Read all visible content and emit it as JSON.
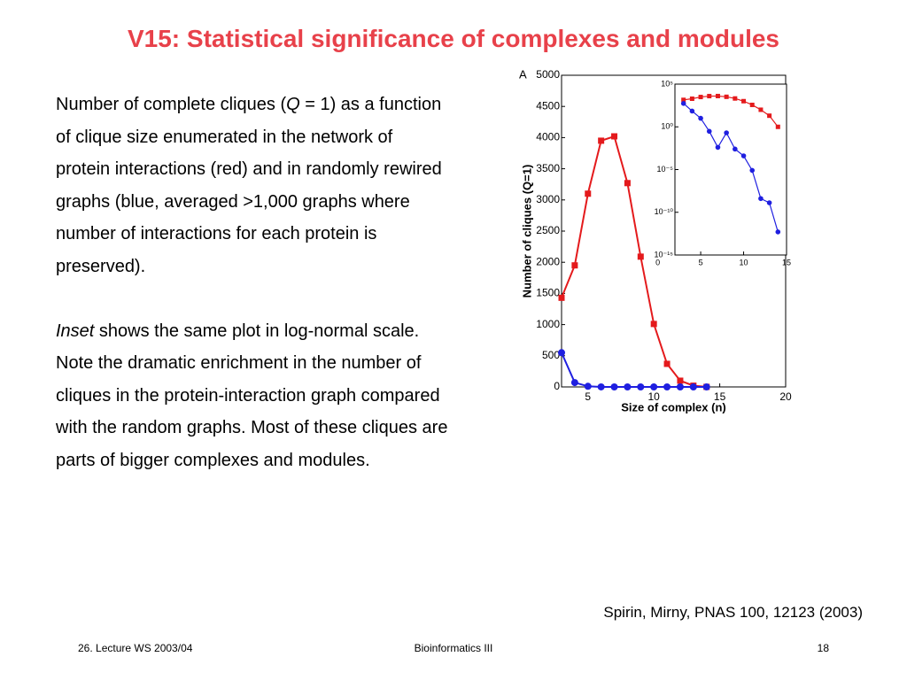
{
  "title": "V15: Statistical significance of complexes and modules",
  "paragraphs": [
    [
      {
        "text": "Number of complete cliques ("
      },
      {
        "text": "Q",
        "italic": true
      },
      {
        "text": " = 1) as a function of clique size enumerated in the network of protein interactions (red) and in randomly rewired graphs (blue, averaged >1,000 graphs where number of interactions for each protein is preserved)."
      }
    ],
    [
      {
        "text": "Inset",
        "italic": true
      },
      {
        "text": " shows the same plot in log-normal scale. Note the dramatic enrichment in the number of cliques in the protein-interaction graph compared with the random graphs. Most of these cliques are parts of bigger complexes and modules."
      }
    ]
  ],
  "chart_data": [
    {
      "type": "line",
      "panel_label": "A",
      "xlabel": "Size of complex (n)",
      "ylabel": "Number of cliques (Q=1)",
      "x": [
        3,
        4,
        5,
        6,
        7,
        8,
        9,
        10,
        11,
        12,
        13,
        14
      ],
      "series": [
        {
          "color": "#e41a1c",
          "marker": "square",
          "values": [
            1430,
            1950,
            3100,
            3950,
            4020,
            3270,
            2090,
            1010,
            370,
            100,
            20,
            1
          ]
        },
        {
          "color": "#1f1fe0",
          "marker": "circle",
          "values": [
            550,
            70,
            10,
            0.3,
            0.004,
            0.2,
            0.0025,
            0.0004,
            8e-06,
            4e-09,
            1.3e-09,
            5e-13
          ]
        }
      ],
      "xlim": [
        3,
        20
      ],
      "xticks": [
        5,
        10,
        15,
        20
      ],
      "ylim": [
        0,
        5000
      ],
      "yticks": [
        0,
        500,
        1000,
        1500,
        2000,
        2500,
        3000,
        3500,
        4000,
        4500,
        5000
      ]
    },
    {
      "type": "line",
      "ylog": true,
      "x": [
        3,
        4,
        5,
        6,
        7,
        8,
        9,
        10,
        11,
        12,
        13,
        14
      ],
      "series": [
        {
          "color": "#e41a1c",
          "marker": "square",
          "values": [
            1430,
            1950,
            3100,
            3950,
            4020,
            3270,
            2090,
            1010,
            370,
            100,
            20,
            1
          ]
        },
        {
          "color": "#1f1fe0",
          "marker": "circle",
          "values": [
            550,
            70,
            10,
            0.3,
            0.004,
            0.2,
            0.0025,
            0.0004,
            8e-06,
            4e-09,
            1.3e-09,
            5e-13
          ]
        }
      ],
      "xlim": [
        2,
        15
      ],
      "xticks": [
        0,
        5,
        10,
        15
      ],
      "ylim": [
        1e-15,
        100000
      ],
      "yticks": [
        {
          "value": 100000,
          "label": "10⁵"
        },
        {
          "value": 1,
          "label": "10⁰"
        },
        {
          "value": 1e-05,
          "label": "10⁻⁵"
        },
        {
          "value": 1e-10,
          "label": "10⁻¹⁰"
        },
        {
          "value": 1e-15,
          "label": "10⁻¹⁵"
        }
      ]
    }
  ],
  "citation": "Spirin, Mirny, PNAS 100, 12123 (2003)",
  "footer": {
    "left": "26. Lecture WS 2003/04",
    "center": "Bioinformatics III",
    "right": "18"
  }
}
